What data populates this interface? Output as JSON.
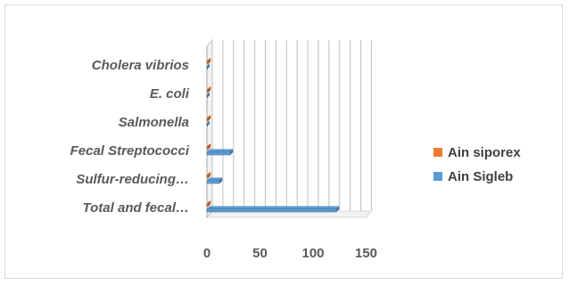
{
  "chart_data": {
    "type": "bar",
    "orientation": "horizontal",
    "style": "3d",
    "categories": [
      "Total and fecal…",
      "Sulfur-reducing…",
      "Fecal Streptococci",
      "Salmonella",
      "E. coli",
      "Cholera vibrios"
    ],
    "series": [
      {
        "name": "Ain Sigleb",
        "color": "#5b9bd5",
        "values": [
          122,
          12,
          22,
          0,
          0,
          0
        ]
      },
      {
        "name": "Ain siporex",
        "color": "#ed7d31",
        "values": [
          1,
          1,
          1,
          1,
          1,
          1
        ]
      }
    ],
    "x_ticks": [
      "0",
      "50",
      "100",
      "150"
    ],
    "xlim": [
      0,
      150
    ],
    "title": "",
    "xlabel": "",
    "ylabel": "",
    "grid": true,
    "legend_position": "right",
    "legend_entries": [
      "Ain siporex",
      "Ain Sigleb"
    ]
  }
}
